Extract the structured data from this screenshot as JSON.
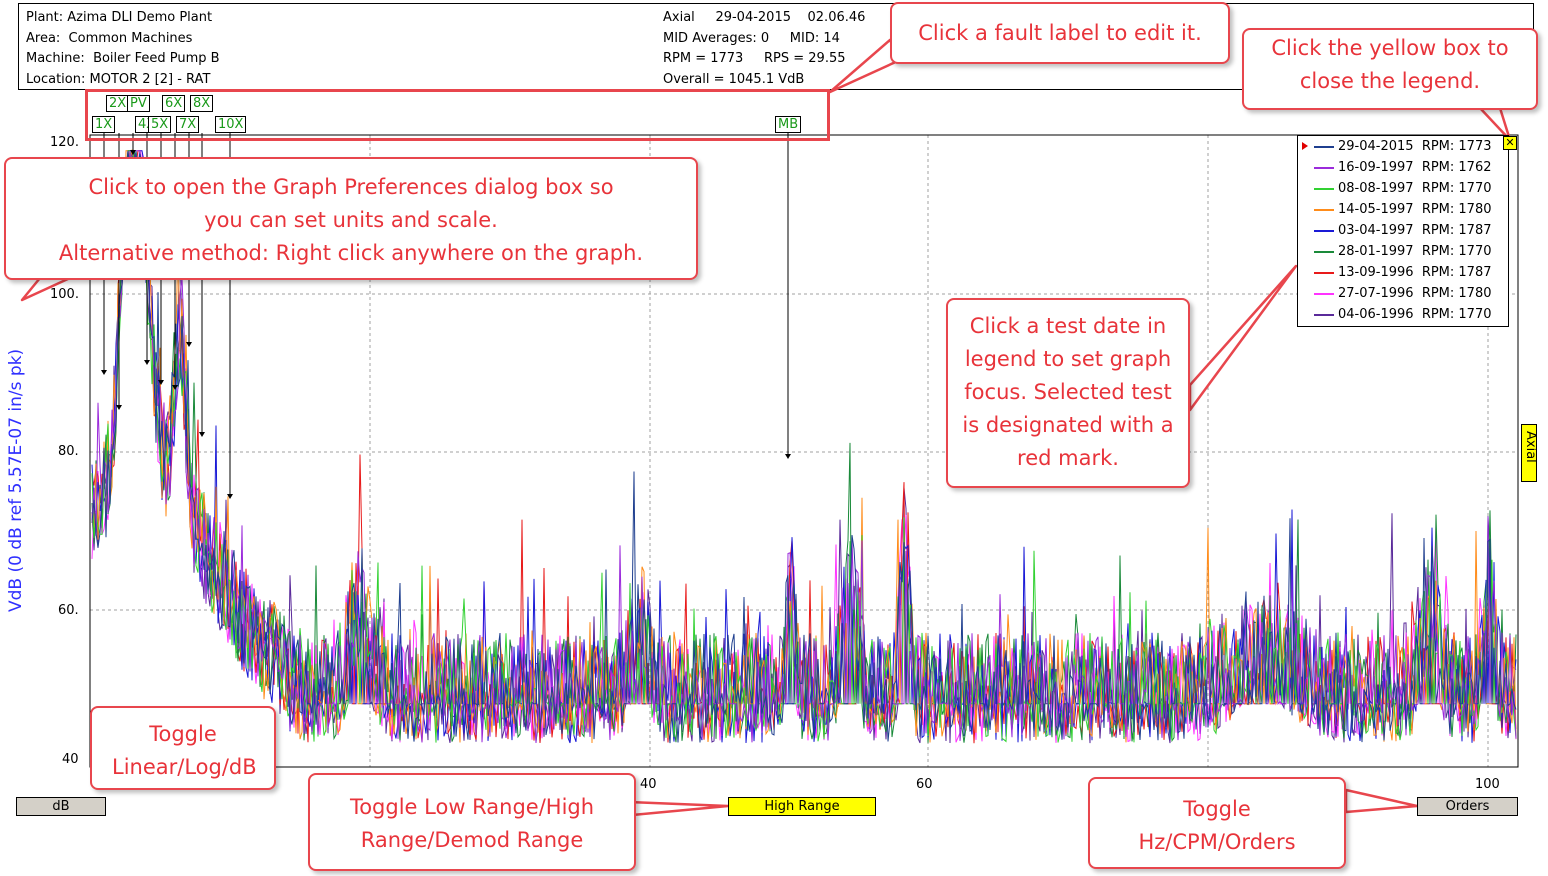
{
  "header": {
    "plant": "Plant: Azima DLI Demo Plant",
    "area": "Area:  Common Machines",
    "machine": "Machine:  Boiler Feed Pump B",
    "location": "Location: MOTOR 2 [2] - RAT",
    "axial": "Axial     29-04-2015    02.06.46",
    "mid_averages": "MID Averages: 0     MID: 14",
    "rpm": "RPM = 1773     RPS = 29.55",
    "overall": "Overall = 1045.1 VdB"
  },
  "fault_labels_top": [
    "2X",
    "PV",
    "6X",
    "8X"
  ],
  "fault_labels_bottom": [
    "1X",
    "4X",
    "5X",
    "7X",
    "10X",
    "MB"
  ],
  "y_axis": {
    "label": "VdB (0 dB ref 5.57E-07 in/s pk)",
    "ticks": [
      "120.",
      "100.",
      "80.",
      "60.",
      "40"
    ]
  },
  "x_axis": {
    "ticks": [
      "40",
      "60",
      "100"
    ]
  },
  "toggles": {
    "units": "dB",
    "range": "High Range",
    "xunits": "Orders"
  },
  "axial_tab": "Axial",
  "legend": {
    "entries": [
      {
        "date": "29-04-2015",
        "rpm": "RPM: 1773",
        "color": "#1f3f8f",
        "selected": true
      },
      {
        "date": "16-09-1997",
        "rpm": "RPM: 1762",
        "color": "#9b2bdb",
        "selected": false
      },
      {
        "date": "08-08-1997",
        "rpm": "RPM: 1770",
        "color": "#32d132",
        "selected": false
      },
      {
        "date": "14-05-1997",
        "rpm": "RPM: 1780",
        "color": "#ff8c1a",
        "selected": false
      },
      {
        "date": "03-04-1997",
        "rpm": "RPM: 1787",
        "color": "#1a1ad6",
        "selected": false
      },
      {
        "date": "28-01-1997",
        "rpm": "RPM: 1770",
        "color": "#1a8a3a",
        "selected": false
      },
      {
        "date": "13-09-1996",
        "rpm": "RPM: 1787",
        "color": "#e81a1a",
        "selected": false
      },
      {
        "date": "27-07-1996",
        "rpm": "RPM: 1780",
        "color": "#ff33ff",
        "selected": false
      },
      {
        "date": "04-06-1996",
        "rpm": "RPM: 1770",
        "color": "#5a2a9a",
        "selected": false
      }
    ]
  },
  "callouts": {
    "fault_edit": "Click a fault label to edit it.",
    "close_legend": "Click the yellow box to close the legend.",
    "graph_prefs": "Click to open the Graph Preferences dialog box so you can set units and scale.",
    "graph_prefs_alt": "Alternative method: Right click anywhere on the graph.",
    "legend_focus": "Click a test date in legend to set graph focus. Selected test is designated with a red mark.",
    "toggle_units": "Toggle Linear/Log/dB",
    "toggle_range": "Toggle Low Range/High Range/Demod Range",
    "toggle_xunits": "Toggle Hz/CPM/Orders"
  },
  "colors": {
    "callout_border": "#e8464d",
    "callout_text": "#e8333a",
    "grid": "#a0a0a0"
  }
}
